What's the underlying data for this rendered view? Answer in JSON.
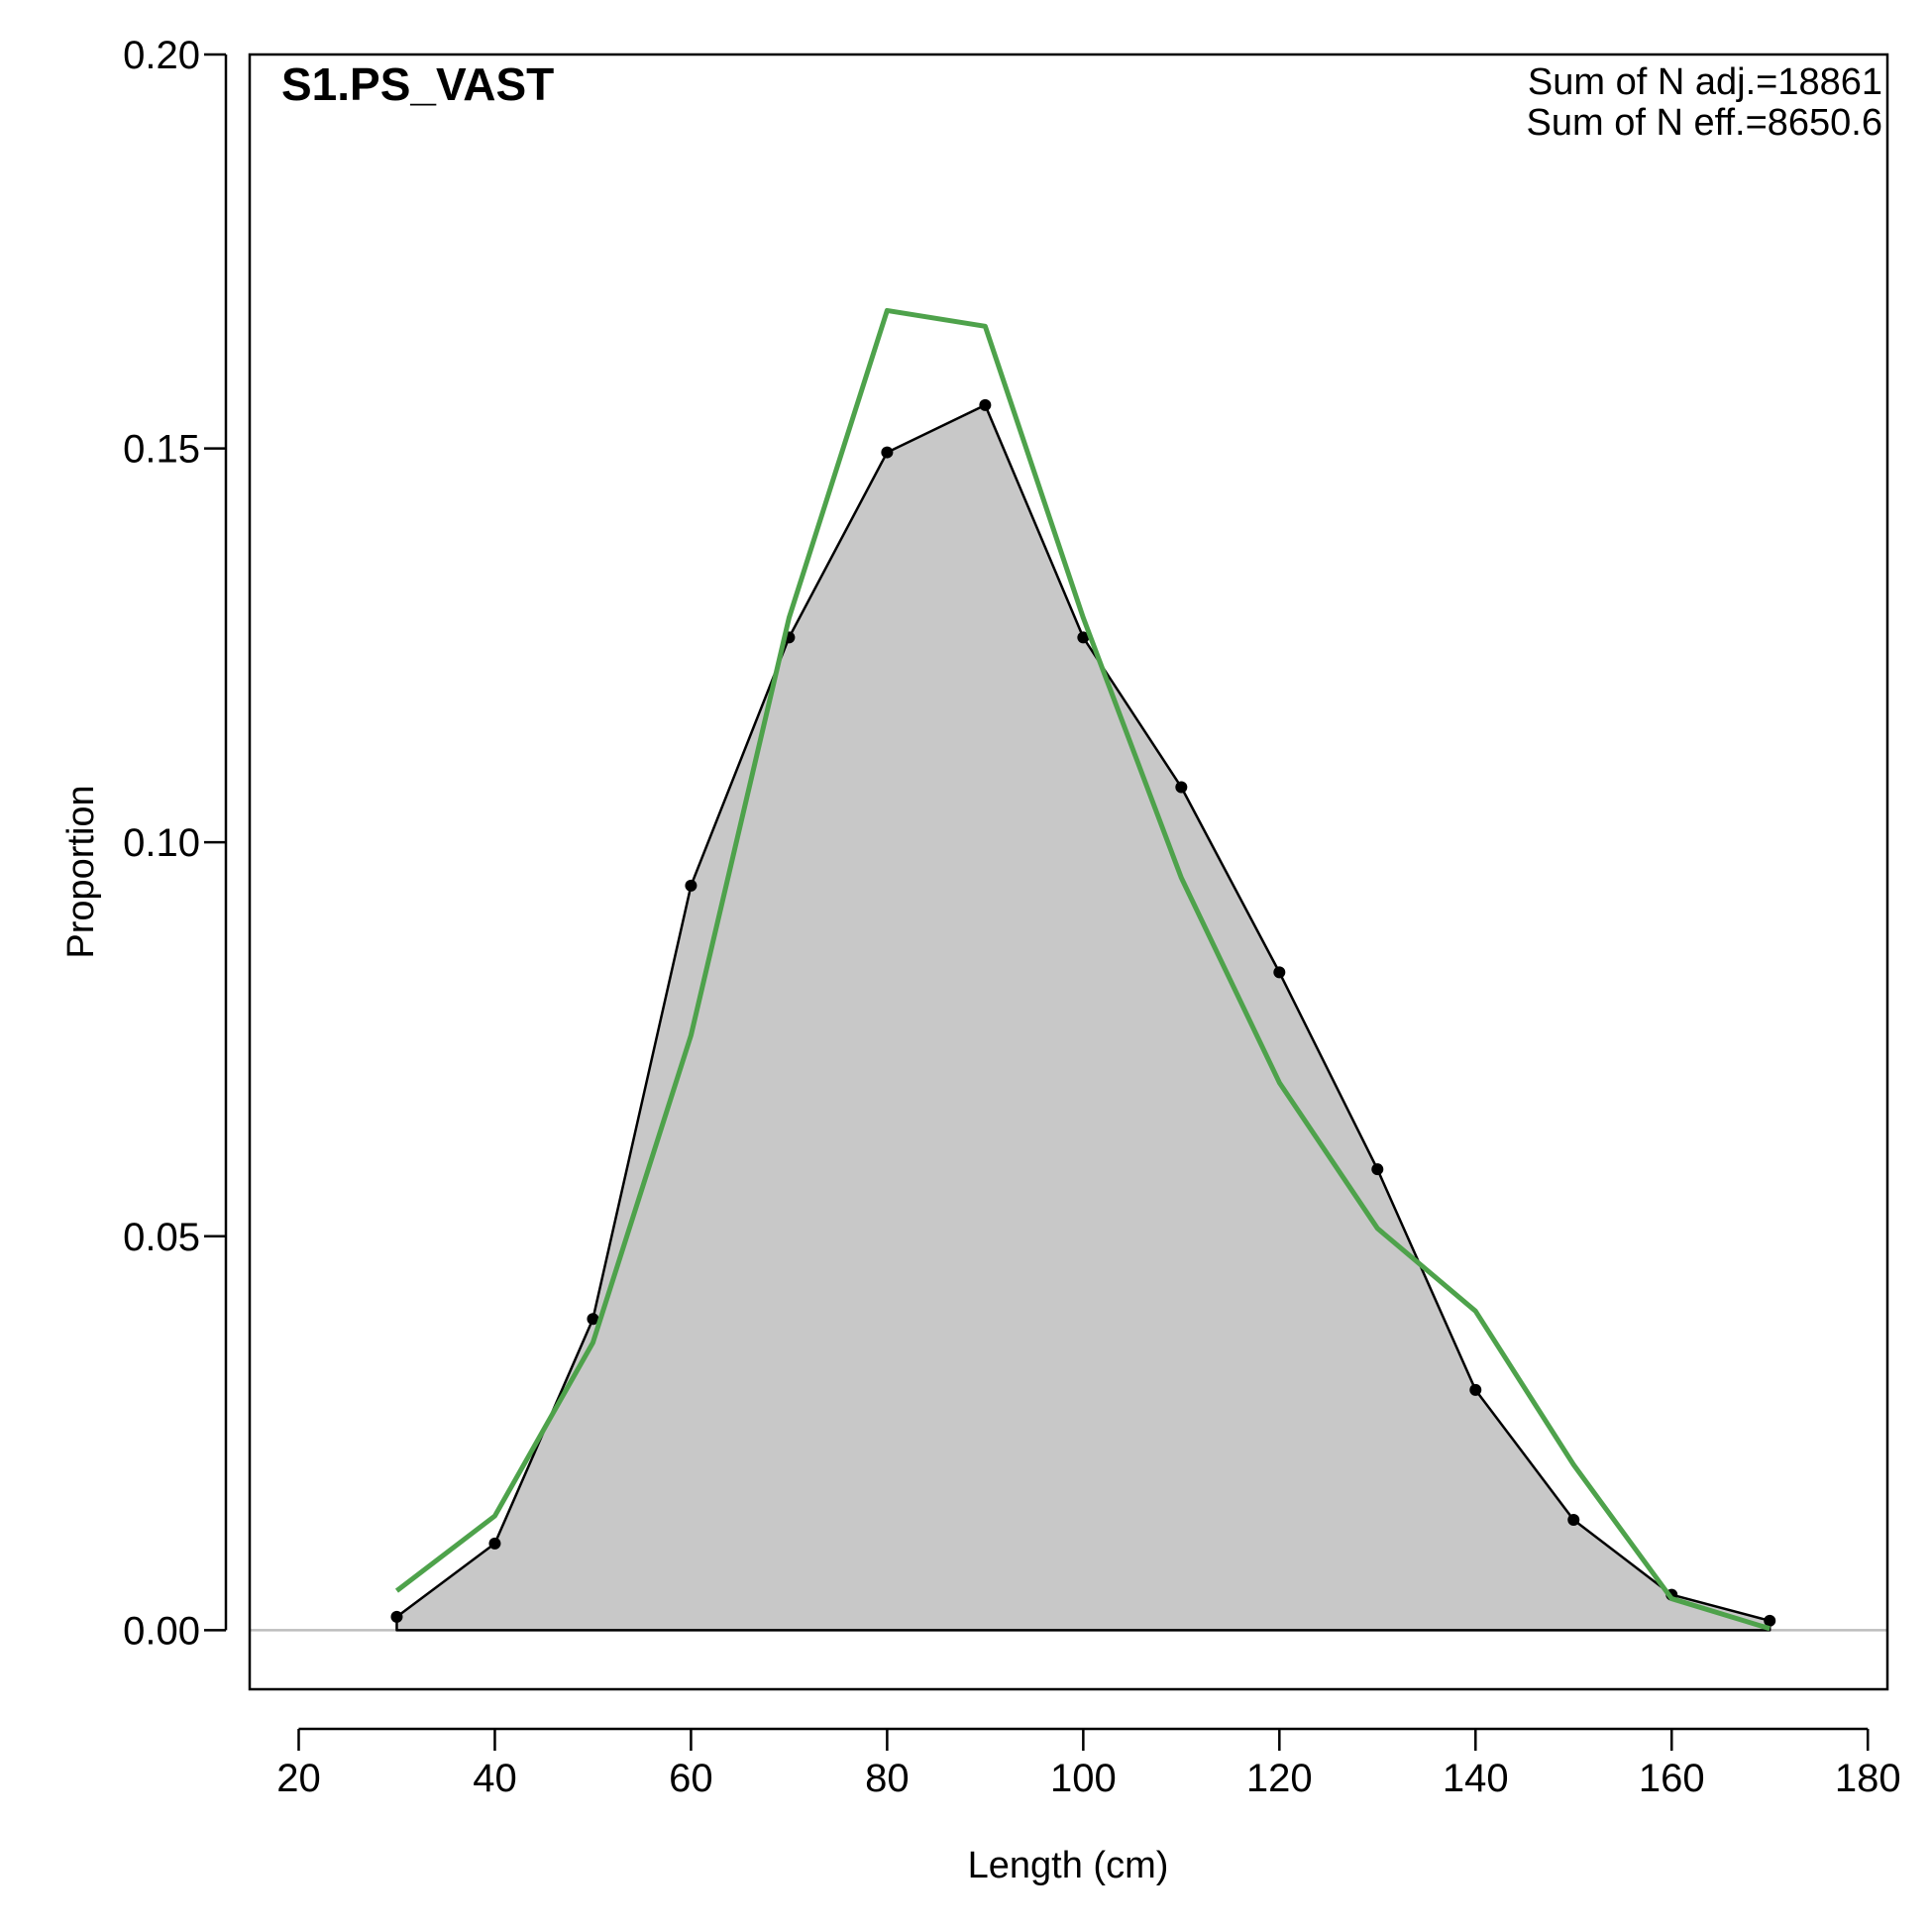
{
  "chart_data": {
    "type": "area",
    "title": "S1.PS_VAST",
    "xlabel": "Length (cm)",
    "ylabel": "Proportion",
    "xlim": [
      15,
      182
    ],
    "ylim": [
      -0.0075,
      0.2
    ],
    "x_ticks": [
      20,
      40,
      60,
      80,
      100,
      120,
      140,
      160,
      180
    ],
    "x_tick_labels": [
      "20",
      "40",
      "60",
      "80",
      "100",
      "120",
      "140",
      "160",
      "180"
    ],
    "y_ticks": [
      0.0,
      0.05,
      0.1,
      0.15,
      0.2
    ],
    "y_tick_labels": [
      "0.00",
      "0.05",
      "0.10",
      "0.15",
      "0.20"
    ],
    "annotations": [
      "Sum of N adj.=18861",
      "Sum of N eff.=8650.6"
    ],
    "grid": false,
    "x": [
      30,
      40,
      50,
      60,
      70,
      80,
      90,
      100,
      110,
      120,
      130,
      140,
      150,
      160,
      170
    ],
    "series": [
      {
        "role": "observed",
        "style": "filled area with points",
        "values": [
          0.0017,
          0.011,
          0.0395,
          0.0945,
          0.126,
          0.1495,
          0.1555,
          0.126,
          0.107,
          0.0835,
          0.0585,
          0.0305,
          0.014,
          0.0045,
          0.0012
        ]
      },
      {
        "role": "expected",
        "style": "line",
        "values": [
          0.005,
          0.0145,
          0.0365,
          0.0755,
          0.1285,
          0.1675,
          0.1655,
          0.1285,
          0.0955,
          0.0695,
          0.051,
          0.0405,
          0.021,
          0.004,
          0.0002
        ]
      }
    ],
    "colors": {
      "fill": "#c8c8c8",
      "observed": "#000000",
      "expected": "#4ea24b",
      "zero_line": "#bdbdbd"
    }
  }
}
